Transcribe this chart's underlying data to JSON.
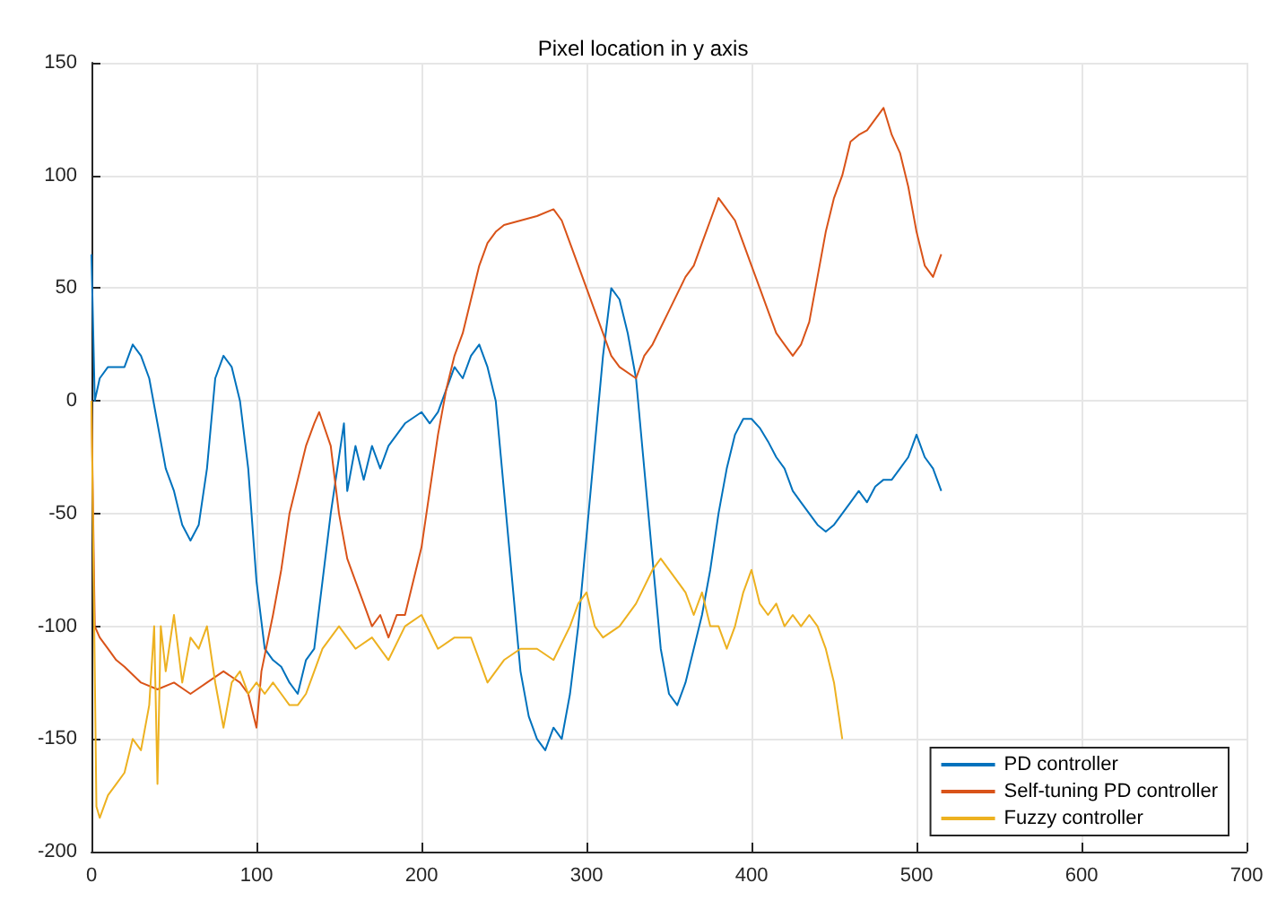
{
  "chart_data": {
    "type": "line",
    "title": "Pixel location in y axis",
    "xlim": [
      0,
      700
    ],
    "xticks": [
      0,
      100,
      200,
      300,
      400,
      500,
      600,
      700
    ],
    "ylim": [
      -200,
      150
    ],
    "yticks": [
      -200,
      -150,
      -100,
      -50,
      0,
      50,
      100,
      150
    ],
    "grid": true,
    "legend": "bottom right",
    "line_style": "solid",
    "marker": "none",
    "series": [
      {
        "name": "PD controller",
        "color": "#0072bd",
        "x": [
          0,
          2,
          5,
          10,
          20,
          25,
          30,
          35,
          40,
          45,
          50,
          55,
          60,
          65,
          70,
          75,
          80,
          85,
          90,
          95,
          100,
          105,
          110,
          115,
          120,
          125,
          130,
          135,
          140,
          145,
          150,
          153,
          155,
          160,
          165,
          170,
          175,
          180,
          190,
          200,
          205,
          210,
          215,
          220,
          225,
          230,
          235,
          240,
          245,
          250,
          255,
          260,
          265,
          270,
          275,
          280,
          285,
          290,
          295,
          300,
          305,
          310,
          315,
          320,
          325,
          330,
          335,
          340,
          345,
          350,
          355,
          360,
          365,
          370,
          375,
          380,
          385,
          390,
          395,
          400,
          405,
          410,
          415,
          420,
          425,
          430,
          435,
          440,
          445,
          450,
          455,
          460,
          465,
          470,
          475,
          480,
          485,
          490,
          495,
          500,
          505,
          510,
          515
        ],
        "values": [
          65,
          0,
          10,
          15,
          15,
          25,
          20,
          10,
          -10,
          -30,
          -40,
          -55,
          -62,
          -55,
          -30,
          10,
          20,
          15,
          0,
          -30,
          -80,
          -110,
          -115,
          -118,
          -125,
          -130,
          -115,
          -110,
          -80,
          -50,
          -25,
          -10,
          -40,
          -20,
          -35,
          -20,
          -30,
          -20,
          -10,
          -5,
          -10,
          -5,
          5,
          15,
          10,
          20,
          25,
          15,
          0,
          -40,
          -80,
          -120,
          -140,
          -150,
          -155,
          -145,
          -150,
          -130,
          -100,
          -60,
          -20,
          20,
          50,
          45,
          30,
          10,
          -30,
          -70,
          -110,
          -130,
          -135,
          -125,
          -110,
          -95,
          -75,
          -50,
          -30,
          -15,
          -8,
          -8,
          -12,
          -18,
          -25,
          -30,
          -40,
          -45,
          -50,
          -55,
          -58,
          -55,
          -50,
          -45,
          -40,
          -45,
          -38,
          -35,
          -35,
          -30,
          -25,
          -15,
          -25,
          -30,
          -40
        ]
      },
      {
        "name": "Self-tuning PD controller",
        "color": "#d95319",
        "x": [
          0,
          2,
          5,
          10,
          15,
          20,
          30,
          40,
          50,
          60,
          70,
          80,
          90,
          95,
          100,
          103,
          110,
          115,
          120,
          125,
          130,
          135,
          138,
          145,
          150,
          155,
          160,
          165,
          170,
          175,
          180,
          185,
          190,
          195,
          200,
          205,
          210,
          215,
          220,
          225,
          230,
          235,
          240,
          245,
          250,
          260,
          270,
          280,
          285,
          290,
          300,
          305,
          310,
          315,
          320,
          330,
          335,
          340,
          350,
          360,
          365,
          370,
          375,
          380,
          385,
          390,
          395,
          400,
          405,
          410,
          415,
          420,
          425,
          430,
          435,
          440,
          445,
          450,
          455,
          460,
          465,
          470,
          475,
          480,
          485,
          490,
          495,
          500,
          505,
          510,
          515
        ],
        "values": [
          0,
          -100,
          -105,
          -110,
          -115,
          -118,
          -125,
          -128,
          -125,
          -130,
          -125,
          -120,
          -125,
          -130,
          -145,
          -120,
          -95,
          -75,
          -50,
          -35,
          -20,
          -10,
          -5,
          -20,
          -50,
          -70,
          -80,
          -90,
          -100,
          -95,
          -105,
          -95,
          -95,
          -80,
          -65,
          -40,
          -15,
          5,
          20,
          30,
          45,
          60,
          70,
          75,
          78,
          80,
          82,
          85,
          80,
          70,
          50,
          40,
          30,
          20,
          15,
          10,
          20,
          25,
          40,
          55,
          60,
          70,
          80,
          90,
          85,
          80,
          70,
          60,
          50,
          40,
          30,
          25,
          20,
          25,
          35,
          55,
          75,
          90,
          100,
          115,
          118,
          120,
          125,
          130,
          118,
          110,
          95,
          75,
          60,
          55,
          65
        ]
      },
      {
        "name": "Fuzzy controller",
        "color": "#edb120",
        "x": [
          0,
          2,
          3,
          5,
          10,
          15,
          20,
          25,
          30,
          35,
          38,
          40,
          42,
          45,
          50,
          55,
          60,
          65,
          70,
          75,
          80,
          85,
          90,
          95,
          100,
          105,
          110,
          115,
          120,
          125,
          130,
          135,
          140,
          145,
          150,
          160,
          170,
          180,
          190,
          200,
          210,
          220,
          230,
          240,
          250,
          260,
          270,
          280,
          290,
          295,
          300,
          305,
          310,
          320,
          330,
          340,
          345,
          350,
          360,
          365,
          370,
          375,
          380,
          385,
          390,
          395,
          400,
          405,
          410,
          415,
          420,
          425,
          430,
          435,
          440,
          445,
          450,
          453,
          455
        ],
        "values": [
          0,
          -120,
          -180,
          -185,
          -175,
          -170,
          -165,
          -150,
          -155,
          -135,
          -100,
          -170,
          -100,
          -120,
          -95,
          -125,
          -105,
          -110,
          -100,
          -125,
          -145,
          -125,
          -120,
          -130,
          -125,
          -130,
          -125,
          -130,
          -135,
          -135,
          -130,
          -120,
          -110,
          -105,
          -100,
          -110,
          -105,
          -115,
          -100,
          -95,
          -110,
          -105,
          -105,
          -125,
          -115,
          -110,
          -110,
          -115,
          -100,
          -90,
          -85,
          -100,
          -105,
          -100,
          -90,
          -75,
          -70,
          -75,
          -85,
          -95,
          -85,
          -100,
          -100,
          -110,
          -100,
          -85,
          -75,
          -90,
          -95,
          -90,
          -100,
          -95,
          -100,
          -95,
          -100,
          -110,
          -125,
          -140,
          -150
        ]
      }
    ]
  }
}
